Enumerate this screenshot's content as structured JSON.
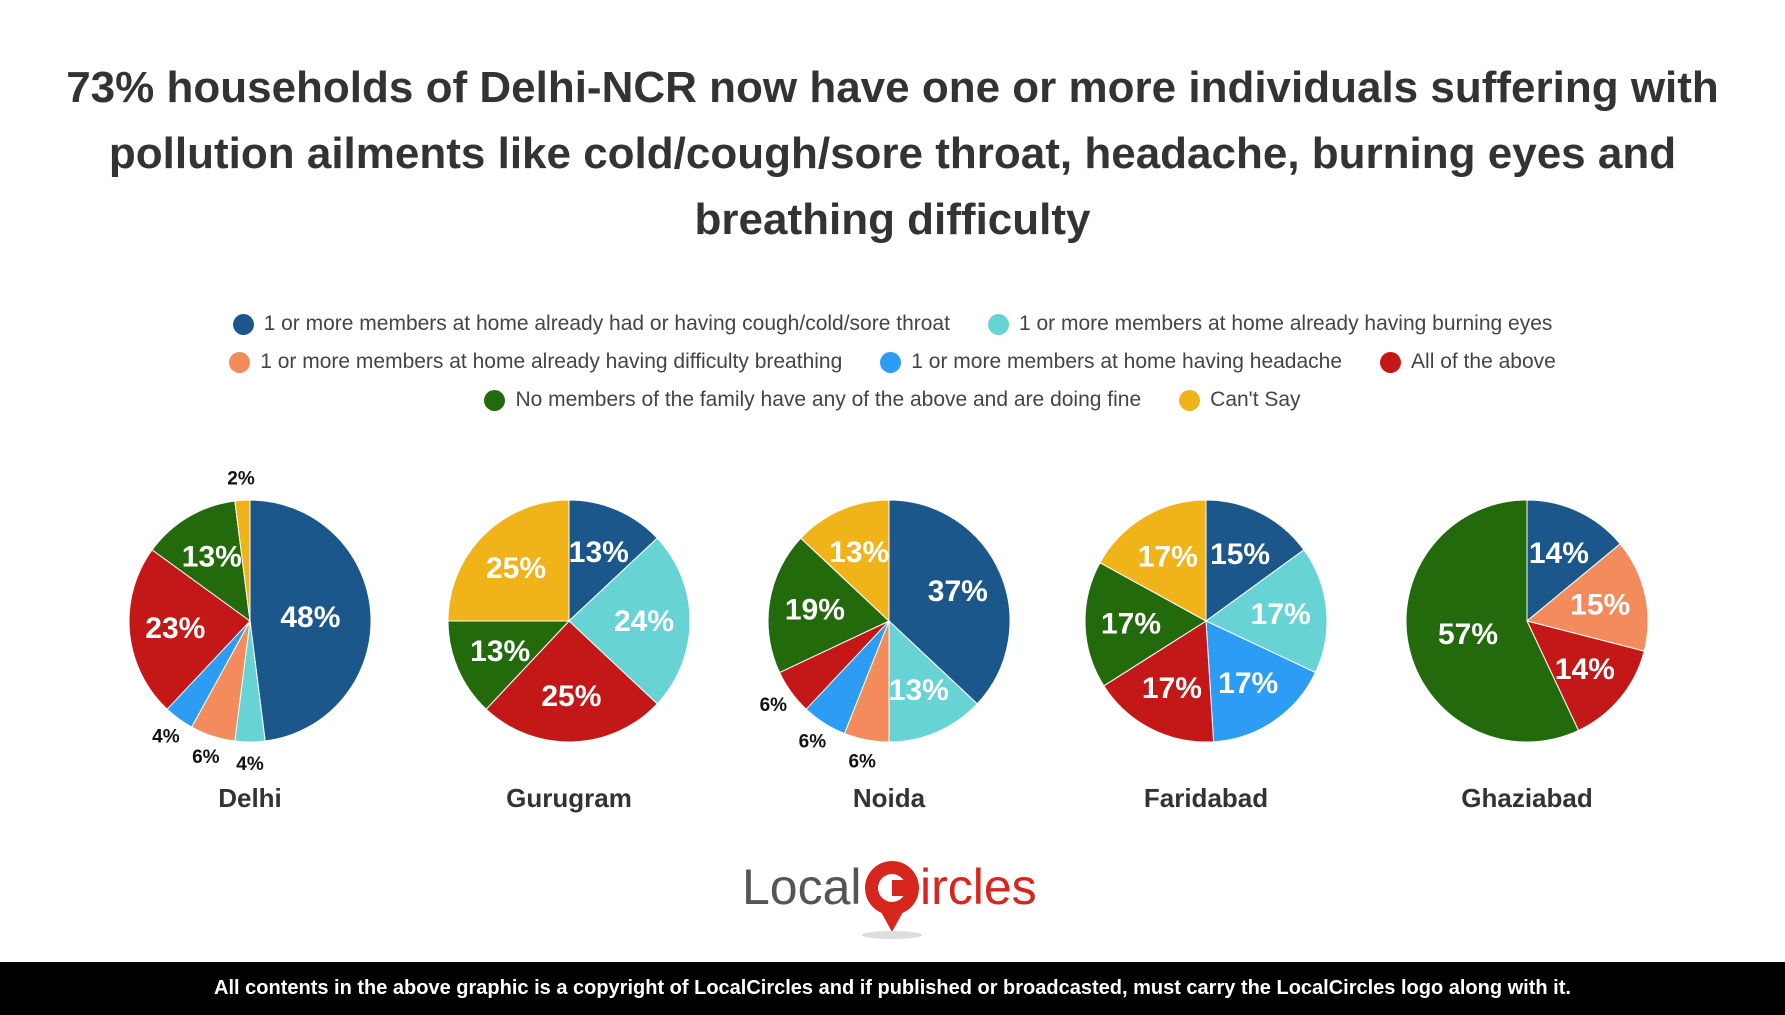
{
  "title": "73% households of Delhi-NCR now have one or more individuals suffering with pollution ailments like cold/cough/sore throat, headache, burning eyes and breathing difficulty",
  "legend": {
    "rows": [
      [
        {
          "label": "1 or more members at home already had or having cough/cold/sore throat",
          "color": "#1b578b"
        },
        {
          "label": "1 or more members at home already having burning eyes",
          "color": "#67d3d5"
        }
      ],
      [
        {
          "label": "1 or more members at home already having difficulty breathing",
          "color": "#f38b5c"
        },
        {
          "label": "1 or more members at home having headache",
          "color": "#2c9cf4"
        },
        {
          "label": "All of the above",
          "color": "#c41818"
        }
      ],
      [
        {
          "label": "No members of the family have any of the above and are doing fine",
          "color": "#236a0d"
        },
        {
          "label": "Can't Say",
          "color": "#f0b31a"
        }
      ]
    ]
  },
  "chart_data": [
    {
      "type": "pie",
      "title": "Delhi",
      "categories": [
        "cough/cold/sore throat",
        "burning eyes",
        "difficulty breathing",
        "headache",
        "all of the above",
        "none",
        "can't say"
      ],
      "values": [
        48,
        4,
        6,
        4,
        23,
        13,
        2
      ],
      "labels": [
        "48%",
        "4%",
        "6%",
        "4%",
        "23%",
        "13%",
        "2%"
      ],
      "colors": [
        "#1b578b",
        "#67d3d5",
        "#f38b5c",
        "#2c9cf4",
        "#c41818",
        "#236a0d",
        "#f0b31a"
      ]
    },
    {
      "type": "pie",
      "title": "Gurugram",
      "categories": [
        "cough/cold/sore throat",
        "burning eyes",
        "all of the above",
        "none",
        "can't say"
      ],
      "values": [
        13,
        24,
        25,
        13,
        25
      ],
      "labels": [
        "13%",
        "24%",
        "25%",
        "13%",
        "25%"
      ],
      "colors": [
        "#1b578b",
        "#67d3d5",
        "#c41818",
        "#236a0d",
        "#f0b31a"
      ]
    },
    {
      "type": "pie",
      "title": "Noida",
      "categories": [
        "cough/cold/sore throat",
        "burning eyes",
        "difficulty breathing",
        "headache",
        "all of the above",
        "none",
        "can't say"
      ],
      "values": [
        37,
        13,
        6,
        6,
        6,
        19,
        13
      ],
      "labels": [
        "37%",
        "13%",
        "6%",
        "6%",
        "6%",
        "19%",
        "13%"
      ],
      "colors": [
        "#1b578b",
        "#67d3d5",
        "#f38b5c",
        "#2c9cf4",
        "#c41818",
        "#236a0d",
        "#f0b31a"
      ]
    },
    {
      "type": "pie",
      "title": "Faridabad",
      "categories": [
        "cough/cold/sore throat",
        "burning eyes",
        "headache",
        "all of the above",
        "none",
        "can't say"
      ],
      "values": [
        15,
        17,
        17,
        17,
        17,
        17
      ],
      "labels": [
        "15%",
        "17%",
        "17%",
        "17%",
        "17%",
        "17%"
      ],
      "colors": [
        "#1b578b",
        "#67d3d5",
        "#2c9cf4",
        "#c41818",
        "#236a0d",
        "#f0b31a"
      ]
    },
    {
      "type": "pie",
      "title": "Ghaziabad",
      "categories": [
        "cough/cold/sore throat",
        "difficulty breathing",
        "all of the above",
        "none"
      ],
      "values": [
        14,
        15,
        14,
        57
      ],
      "labels": [
        "14%",
        "15%",
        "14%",
        "57%"
      ],
      "colors": [
        "#1b578b",
        "#f38b5c",
        "#c41818",
        "#236a0d"
      ]
    }
  ],
  "logo": {
    "text_left": "Local",
    "text_right": "ircles",
    "brand_red": "#d7261d",
    "brand_gray": "#555555"
  },
  "footer": {
    "text": "All contents in the above graphic is a copyright of LocalCircles and if published or broadcasted, must carry the LocalCircles logo along with it."
  }
}
